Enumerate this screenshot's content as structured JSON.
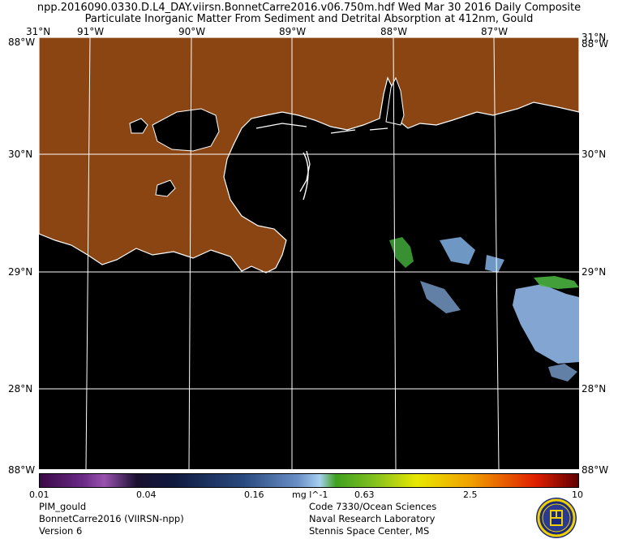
{
  "header": {
    "line1": "npp.2016090.0330.D.L4_DAY.viirsn.BonnetCarre2016.v06.750m.hdf   Wed Mar 30 2016 Daily Composite",
    "line2": "Particulate Inorganic Matter From Sediment and Detrital Absorption at 412nm, Gould"
  },
  "map": {
    "lon_labels": [
      "91°W",
      "90°W",
      "89°W",
      "88°W",
      "87°W"
    ],
    "corner_top_left": "31°N",
    "corner_top_right": "31°N",
    "corner_top_left_overlap": "88°W",
    "corner_top_right_overlap": "88°W",
    "lat_labels_left": [
      "30°N",
      "29°N",
      "28°N"
    ],
    "lat_labels_right": [
      "30°N",
      "29°N",
      "28°N"
    ],
    "corner_bottom_left": "88°W",
    "corner_bottom_right": "88°W",
    "land_color": "#8b4513",
    "water_color": "#000000",
    "grid_color": "#ffffff"
  },
  "colorbar": {
    "ticks": [
      "0.01",
      "0.04",
      "0.16",
      "mg l^-1",
      "0.63",
      "2.5",
      "10"
    ]
  },
  "footer": {
    "left": [
      "PIM_gould",
      "BonnetCarre2016 (VIIRSN-npp)",
      "Version 6"
    ],
    "right": [
      "Code 7330/Ocean Sciences",
      "Naval Research Laboratory",
      "Stennis Space Center, MS"
    ]
  }
}
